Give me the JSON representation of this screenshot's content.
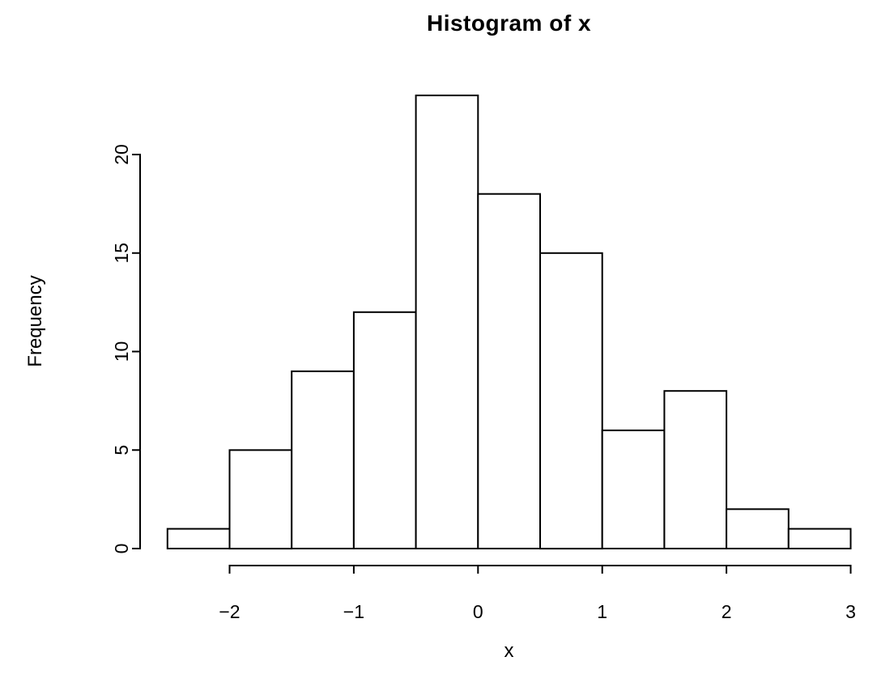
{
  "chart_data": {
    "type": "bar",
    "subtype": "histogram",
    "title": "Histogram of x",
    "xlabel": "x",
    "ylabel": "Frequency",
    "bin_edges": [
      -2.5,
      -2.0,
      -1.5,
      -1.0,
      -0.5,
      0.0,
      0.5,
      1.0,
      1.5,
      2.0,
      2.5,
      3.0
    ],
    "counts": [
      1,
      5,
      9,
      12,
      23,
      18,
      15,
      6,
      8,
      2,
      1
    ],
    "x_ticks": [
      -2,
      -1,
      0,
      1,
      2,
      3
    ],
    "x_tick_labels": [
      "−2",
      "−1",
      "0",
      "1",
      "2",
      "3"
    ],
    "y_ticks": [
      0,
      5,
      10,
      15,
      20
    ],
    "y_tick_labels": [
      "0",
      "5",
      "10",
      "15",
      "20"
    ],
    "xlim": [
      -2.5,
      3.0
    ],
    "ylim": [
      0,
      23
    ],
    "grid": "off",
    "legend": "none",
    "colors": {
      "bar_fill": "#ffffff",
      "bar_border": "#000000",
      "axis": "#000000",
      "text": "#000000",
      "background": "#ffffff"
    }
  }
}
